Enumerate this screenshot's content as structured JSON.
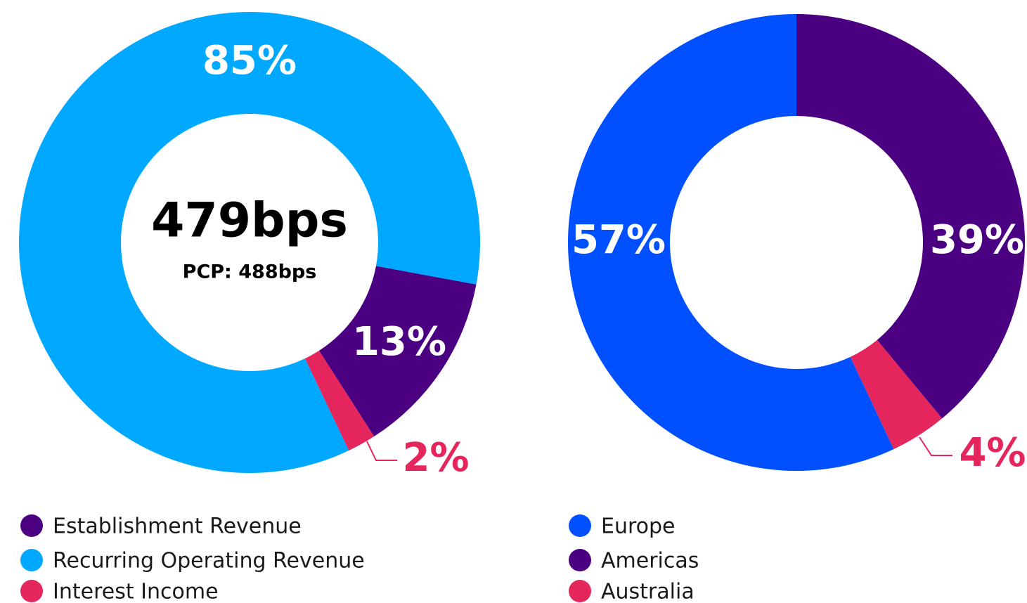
{
  "chart_data": [
    {
      "type": "pie",
      "center_title": "479bps",
      "center_subtitle": "PCP: 488bps",
      "categories": [
        "Establishment Revenue",
        "Recurring Operating Revenue",
        "Interest Income"
      ],
      "values": [
        13,
        85,
        2
      ],
      "value_labels": [
        "13%",
        "85%",
        "2%"
      ],
      "colors": [
        "#4b0082",
        "#00a8ff",
        "#e5265d"
      ]
    },
    {
      "type": "pie",
      "categories": [
        "Europe",
        "Americas",
        "Australia"
      ],
      "values": [
        57,
        39,
        4
      ],
      "value_labels": [
        "57%",
        "39%",
        "4%"
      ],
      "colors": [
        "#0050ff",
        "#4b0082",
        "#e5265d"
      ]
    }
  ]
}
